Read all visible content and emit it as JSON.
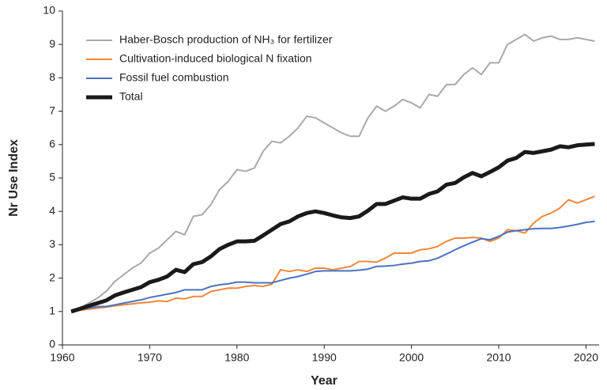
{
  "chart_data": {
    "type": "line",
    "xlabel": "Year",
    "ylabel": "Nr Use Index",
    "x": [
      1961,
      1962,
      1963,
      1964,
      1965,
      1966,
      1967,
      1968,
      1969,
      1970,
      1971,
      1972,
      1973,
      1974,
      1975,
      1976,
      1977,
      1978,
      1979,
      1980,
      1981,
      1982,
      1983,
      1984,
      1985,
      1986,
      1987,
      1988,
      1989,
      1990,
      1991,
      1992,
      1993,
      1994,
      1995,
      1996,
      1997,
      1998,
      1999,
      2000,
      2001,
      2002,
      2003,
      2004,
      2005,
      2006,
      2007,
      2008,
      2009,
      2010,
      2011,
      2012,
      2013,
      2014,
      2015,
      2016,
      2017,
      2018,
      2019,
      2020,
      2021
    ],
    "series": [
      {
        "name": "Haber-Bosch production of NH₃ for fertilizer",
        "color": "#a9a9a9",
        "width": 2,
        "values": [
          1.0,
          1.1,
          1.25,
          1.4,
          1.6,
          1.9,
          2.1,
          2.3,
          2.45,
          2.75,
          2.9,
          3.15,
          3.4,
          3.3,
          3.85,
          3.9,
          4.2,
          4.65,
          4.9,
          5.25,
          5.2,
          5.3,
          5.8,
          6.1,
          6.05,
          6.25,
          6.5,
          6.85,
          6.8,
          6.65,
          6.5,
          6.35,
          6.25,
          6.25,
          6.8,
          7.15,
          7.0,
          7.15,
          7.35,
          7.25,
          7.1,
          7.5,
          7.45,
          7.8,
          7.8,
          8.1,
          8.3,
          8.1,
          8.45,
          8.45,
          9.0,
          9.15,
          9.3,
          9.1,
          9.2,
          9.25,
          9.15,
          9.15,
          9.2,
          9.15,
          9.1
        ]
      },
      {
        "name": "Cultivation-induced biological N fixation",
        "color": "#f0883a",
        "width": 2,
        "values": [
          1.0,
          1.04,
          1.07,
          1.1,
          1.13,
          1.17,
          1.2,
          1.23,
          1.26,
          1.28,
          1.32,
          1.3,
          1.4,
          1.38,
          1.45,
          1.45,
          1.6,
          1.65,
          1.7,
          1.7,
          1.75,
          1.78,
          1.75,
          1.82,
          2.25,
          2.2,
          2.25,
          2.2,
          2.3,
          2.3,
          2.25,
          2.3,
          2.35,
          2.5,
          2.5,
          2.48,
          2.6,
          2.75,
          2.75,
          2.75,
          2.85,
          2.88,
          2.95,
          3.1,
          3.2,
          3.2,
          3.22,
          3.2,
          3.1,
          3.2,
          3.45,
          3.42,
          3.35,
          3.65,
          3.85,
          3.95,
          4.1,
          4.35,
          4.25,
          4.35,
          4.45
        ]
      },
      {
        "name": "Fossil fuel combustion",
        "color": "#4a72c0",
        "width": 2,
        "values": [
          1.0,
          1.05,
          1.1,
          1.15,
          1.15,
          1.2,
          1.25,
          1.3,
          1.35,
          1.42,
          1.47,
          1.52,
          1.57,
          1.65,
          1.65,
          1.65,
          1.75,
          1.8,
          1.83,
          1.88,
          1.88,
          1.86,
          1.86,
          1.86,
          1.93,
          2.0,
          2.05,
          2.12,
          2.2,
          2.22,
          2.22,
          2.22,
          2.22,
          2.24,
          2.27,
          2.35,
          2.36,
          2.38,
          2.42,
          2.45,
          2.5,
          2.52,
          2.6,
          2.72,
          2.85,
          2.97,
          3.08,
          3.18,
          3.15,
          3.25,
          3.38,
          3.42,
          3.45,
          3.48,
          3.49,
          3.49,
          3.52,
          3.56,
          3.61,
          3.67,
          3.7
        ]
      },
      {
        "name": "Total",
        "color": "#1a1a1a",
        "width": 5,
        "values": [
          1.0,
          1.08,
          1.17,
          1.25,
          1.33,
          1.48,
          1.57,
          1.65,
          1.73,
          1.88,
          1.95,
          2.05,
          2.25,
          2.18,
          2.42,
          2.48,
          2.65,
          2.87,
          3.0,
          3.1,
          3.1,
          3.12,
          3.28,
          3.45,
          3.62,
          3.7,
          3.85,
          3.95,
          4.0,
          3.95,
          3.88,
          3.82,
          3.8,
          3.85,
          4.02,
          4.22,
          4.22,
          4.32,
          4.42,
          4.38,
          4.38,
          4.52,
          4.6,
          4.8,
          4.85,
          5.02,
          5.15,
          5.05,
          5.18,
          5.32,
          5.52,
          5.6,
          5.78,
          5.75,
          5.8,
          5.85,
          5.95,
          5.92,
          5.98,
          6.0,
          6.02
        ]
      }
    ],
    "xlim": [
      1960,
      2021.5
    ],
    "xticks": [
      1960,
      1970,
      1980,
      1990,
      2000,
      2010,
      2020
    ],
    "ylim": [
      0,
      10
    ],
    "yticks": [
      0,
      1,
      2,
      3,
      4,
      5,
      6,
      7,
      8,
      9,
      10
    ],
    "legend": "upper-left"
  }
}
